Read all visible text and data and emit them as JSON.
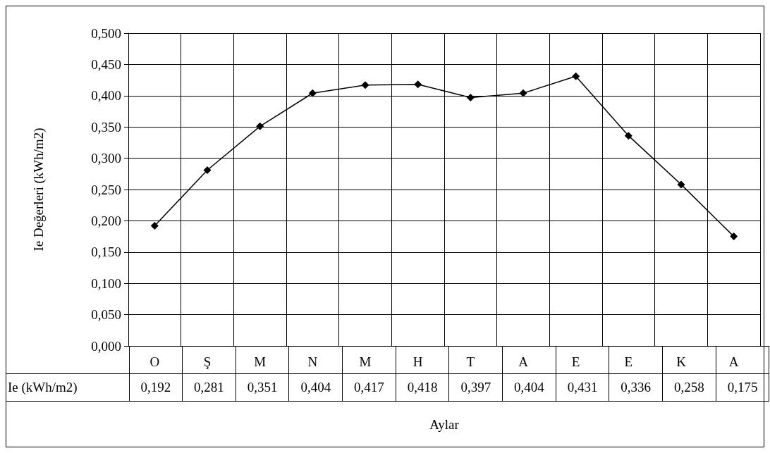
{
  "chart_data": {
    "type": "line",
    "ylabel": "Ie Değerleri (kWh/m2)",
    "xlabel": "Aylar",
    "categories": [
      "O",
      "Ş",
      "M",
      "N",
      "M",
      "H",
      "T",
      "A",
      "E",
      "E",
      "K",
      "A"
    ],
    "series": [
      {
        "name": "Ie (kWh/m2)",
        "color": "#000000",
        "values": [
          0.192,
          0.281,
          0.351,
          0.404,
          0.417,
          0.418,
          0.397,
          0.404,
          0.431,
          0.336,
          0.258,
          0.175
        ],
        "value_labels": [
          "0,192",
          "0,281",
          "0,351",
          "0,404",
          "0,417",
          "0,418",
          "0,397",
          "0,404",
          "0,431",
          "0,336",
          "0,258",
          "0,175"
        ]
      }
    ],
    "ylim": [
      0,
      0.5
    ],
    "yticks": [
      {
        "value": 0,
        "label": "0,000"
      },
      {
        "value": 0.05,
        "label": "0,050"
      },
      {
        "value": 0.1,
        "label": "0,100"
      },
      {
        "value": 0.15,
        "label": "0,150"
      },
      {
        "value": 0.2,
        "label": "0,200"
      },
      {
        "value": 0.25,
        "label": "0,250"
      },
      {
        "value": 0.3,
        "label": "0,300"
      },
      {
        "value": 0.35,
        "label": "0,350"
      },
      {
        "value": 0.4,
        "label": "0,400"
      },
      {
        "value": 0.45,
        "label": "0,450"
      },
      {
        "value": 0.5,
        "label": "0,500"
      }
    ],
    "grid": true,
    "marker": "diamond",
    "line_style": "solid"
  }
}
